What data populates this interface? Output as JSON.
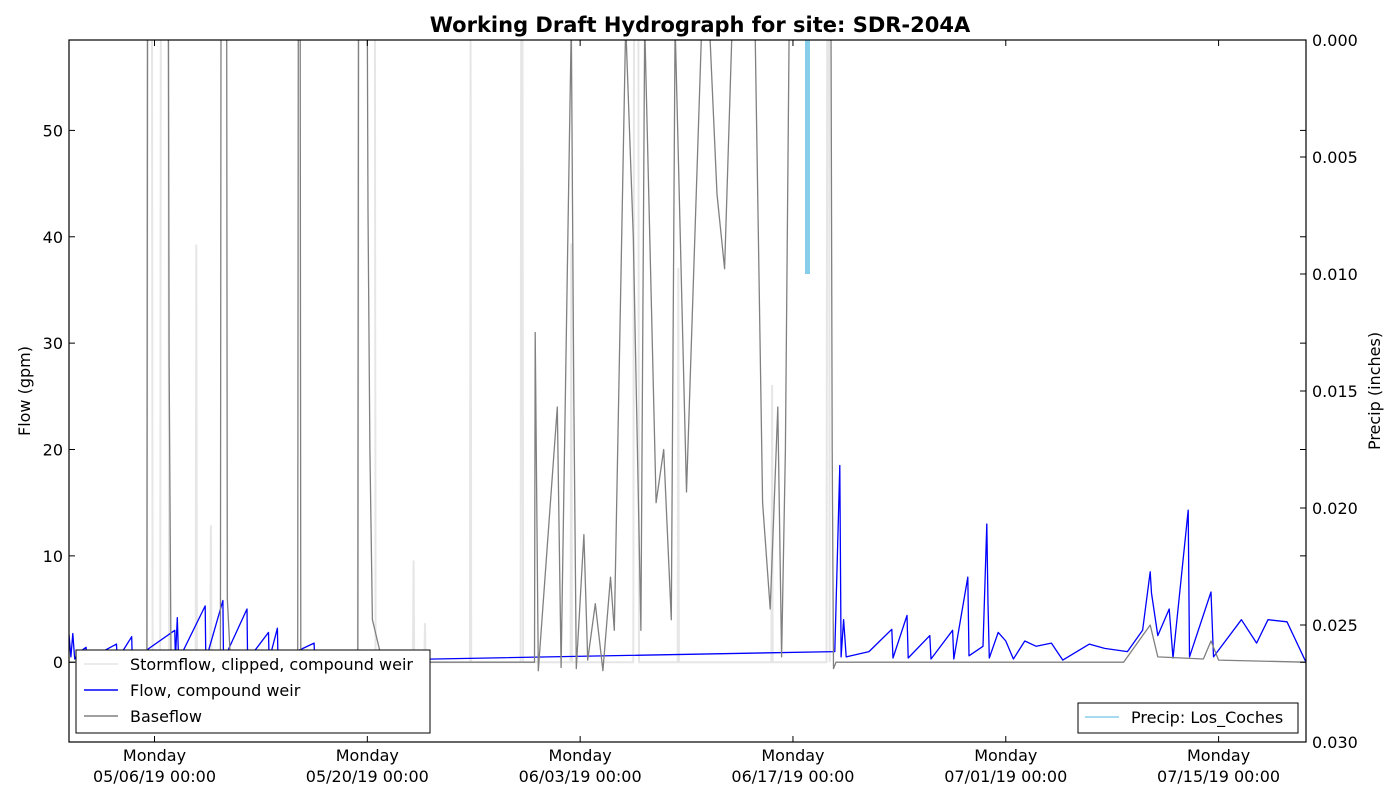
{
  "chart_data": {
    "type": "line",
    "title": "Working Draft Hydrograph for site: SDR-204A",
    "ylabel": "Flow (gpm)",
    "y2label": "Precip (inches)",
    "ylim": [
      -7.5,
      58.5
    ],
    "y2lim": [
      0.0,
      0.03
    ],
    "y2_inverted": true,
    "xlim": [
      "2019-04-30 09:00",
      "2019-07-20 18:00"
    ],
    "yticks": [
      "0",
      "10",
      "20",
      "30",
      "40",
      "50"
    ],
    "y2ticks": [
      "0.000",
      "0.005",
      "0.010",
      "0.015",
      "0.020",
      "0.025",
      "0.030"
    ],
    "xticks": [
      {
        "weekday": "Monday",
        "datetime": "05/06/19 00:00"
      },
      {
        "weekday": "Monday",
        "datetime": "05/20/19 00:00"
      },
      {
        "weekday": "Monday",
        "datetime": "06/03/19 00:00"
      },
      {
        "weekday": "Monday",
        "datetime": "06/17/19 00:00"
      },
      {
        "weekday": "Monday",
        "datetime": "07/01/19 00:00"
      },
      {
        "weekday": "Monday",
        "datetime": "07/15/19 00:00"
      }
    ],
    "legend_left": {
      "placement": "lower-left",
      "entries": [
        {
          "label": "Stormflow, clipped, compound weir",
          "color": "#e6e6e6"
        },
        {
          "label": "Flow, compound weir",
          "color": "#0000ff"
        },
        {
          "label": "Baseflow",
          "color": "#808080"
        }
      ]
    },
    "legend_right": {
      "placement": "lower-right",
      "entries": [
        {
          "label": "Precip: Los_Coches",
          "color": "#87ceeb"
        }
      ]
    },
    "series": [
      {
        "name": "Stormflow, clipped, compound weir",
        "color": "#e6e6e6",
        "points": [
          [
            "2019-05-05 12:00",
            0
          ],
          [
            "2019-05-05 13:00",
            60
          ],
          [
            "2019-05-05 20:00",
            60
          ],
          [
            "2019-05-05 21:00",
            0
          ],
          [
            "2019-05-06 09:00",
            0
          ],
          [
            "2019-05-06 10:00",
            60
          ],
          [
            "2019-05-06 22:00",
            60
          ],
          [
            "2019-05-06 23:00",
            0
          ],
          [
            "2019-05-08 17:00",
            0
          ],
          [
            "2019-05-08 18:00",
            39.2
          ],
          [
            "2019-05-08 19:00",
            0
          ],
          [
            "2019-05-09 16:00",
            0
          ],
          [
            "2019-05-09 17:00",
            12.8
          ],
          [
            "2019-05-09 18:00",
            0
          ],
          [
            "2019-05-19 09:00",
            0
          ],
          [
            "2019-05-19 10:00",
            60
          ],
          [
            "2019-05-20 12:00",
            60
          ],
          [
            "2019-05-20 13:00",
            0
          ],
          [
            "2019-05-23 00:00",
            0
          ],
          [
            "2019-05-23 01:00",
            9.5
          ],
          [
            "2019-05-23 02:00",
            0
          ],
          [
            "2019-05-23 18:00",
            0
          ],
          [
            "2019-05-23 19:00",
            3.6
          ],
          [
            "2019-05-23 20:00",
            0
          ],
          [
            "2019-05-26 18:00",
            0
          ],
          [
            "2019-05-26 19:00",
            60
          ],
          [
            "2019-05-26 20:00",
            0
          ],
          [
            "2019-05-30 02:00",
            0
          ],
          [
            "2019-05-30 03:00",
            60
          ],
          [
            "2019-05-30 05:00",
            60
          ],
          [
            "2019-05-30 06:00",
            0
          ],
          [
            "2019-06-02 09:00",
            0
          ],
          [
            "2019-06-02 10:00",
            39.3
          ],
          [
            "2019-06-02 11:00",
            0
          ],
          [
            "2019-06-06 12:00",
            0
          ],
          [
            "2019-06-06 13:00",
            60
          ],
          [
            "2019-06-06 20:00",
            60
          ],
          [
            "2019-06-06 21:00",
            0
          ],
          [
            "2019-06-09 10:00",
            0
          ],
          [
            "2019-06-09 11:00",
            37
          ],
          [
            "2019-06-09 12:00",
            0
          ],
          [
            "2019-06-15 14:00",
            0
          ],
          [
            "2019-06-15 15:00",
            26
          ],
          [
            "2019-06-15 16:00",
            0
          ],
          [
            "2019-06-19 05:00",
            0
          ],
          [
            "2019-06-19 06:00",
            60
          ],
          [
            "2019-06-19 09:00",
            60
          ],
          [
            "2019-06-19 10:00",
            0
          ]
        ]
      },
      {
        "name": "Flow, compound weir",
        "color": "#0000ff",
        "points": [
          [
            "2019-04-30 09:00",
            2.6
          ],
          [
            "2019-04-30 12:00",
            0.5
          ],
          [
            "2019-04-30 15:00",
            2.7
          ],
          [
            "2019-04-30 18:00",
            0.3
          ],
          [
            "2019-05-01 00:00",
            0.9
          ],
          [
            "2019-05-01 12:00",
            1.4
          ],
          [
            "2019-05-01 13:00",
            0.2
          ],
          [
            "2019-05-03 12:00",
            1.7
          ],
          [
            "2019-05-03 13:00",
            0.2
          ],
          [
            "2019-05-04 12:00",
            2.4
          ],
          [
            "2019-05-04 13:00",
            0.2
          ],
          [
            "2019-05-07 08:00",
            3.0
          ],
          [
            "2019-05-07 09:00",
            0.2
          ],
          [
            "2019-05-07 12:00",
            4.2
          ],
          [
            "2019-05-07 14:00",
            0.2
          ],
          [
            "2019-05-09 08:00",
            5.3
          ],
          [
            "2019-05-09 09:00",
            0.2
          ],
          [
            "2019-05-10 12:00",
            5.8
          ],
          [
            "2019-05-10 13:00",
            0.2
          ],
          [
            "2019-05-12 02:00",
            5.0
          ],
          [
            "2019-05-12 03:00",
            0.2
          ],
          [
            "2019-05-13 12:00",
            2.8
          ],
          [
            "2019-05-13 13:00",
            0.2
          ],
          [
            "2019-05-14 02:00",
            3.2
          ],
          [
            "2019-05-14 03:00",
            0.2
          ],
          [
            "2019-05-16 12:00",
            1.8
          ],
          [
            "2019-05-16 13:00",
            0.1
          ],
          [
            "2019-06-19 18:00",
            1.0
          ],
          [
            "2019-06-20 02:00",
            18.5
          ],
          [
            "2019-06-20 04:00",
            0.5
          ],
          [
            "2019-06-20 08:00",
            4.0
          ],
          [
            "2019-06-20 12:00",
            0.5
          ],
          [
            "2019-06-22 00:00",
            1.0
          ],
          [
            "2019-06-23 12:00",
            3.1
          ],
          [
            "2019-06-23 14:00",
            0.4
          ],
          [
            "2019-06-24 12:00",
            4.4
          ],
          [
            "2019-06-24 14:00",
            0.4
          ],
          [
            "2019-06-26 00:00",
            2.5
          ],
          [
            "2019-06-26 02:00",
            0.3
          ],
          [
            "2019-06-27 12:00",
            3.0
          ],
          [
            "2019-06-27 14:00",
            0.3
          ],
          [
            "2019-06-28 12:00",
            8.0
          ],
          [
            "2019-06-28 14:00",
            0.6
          ],
          [
            "2019-06-29 12:00",
            1.5
          ],
          [
            "2019-06-29 18:00",
            13.0
          ],
          [
            "2019-06-29 20:00",
            5.5
          ],
          [
            "2019-06-29 22:00",
            0.4
          ],
          [
            "2019-06-30 12:00",
            2.8
          ],
          [
            "2019-07-01 00:00",
            2.0
          ],
          [
            "2019-07-01 12:00",
            0.3
          ],
          [
            "2019-07-02 06:00",
            2.0
          ],
          [
            "2019-07-03 00:00",
            1.5
          ],
          [
            "2019-07-04 00:00",
            1.8
          ],
          [
            "2019-07-04 18:00",
            0.2
          ],
          [
            "2019-07-06 12:00",
            1.7
          ],
          [
            "2019-07-07 12:00",
            1.3
          ],
          [
            "2019-07-09 00:00",
            1.0
          ],
          [
            "2019-07-10 00:00",
            3.0
          ],
          [
            "2019-07-10 12:00",
            8.5
          ],
          [
            "2019-07-10 14:00",
            6.5
          ],
          [
            "2019-07-11 00:00",
            2.5
          ],
          [
            "2019-07-11 18:00",
            5.0
          ],
          [
            "2019-07-12 00:00",
            0.4
          ],
          [
            "2019-07-13 00:00",
            14.3
          ],
          [
            "2019-07-13 02:00",
            0.5
          ],
          [
            "2019-07-14 12:00",
            6.6
          ],
          [
            "2019-07-14 16:00",
            0.5
          ],
          [
            "2019-07-16 12:00",
            4.0
          ],
          [
            "2019-07-17 12:00",
            1.8
          ],
          [
            "2019-07-18 06:00",
            4.0
          ],
          [
            "2019-07-19 12:00",
            3.8
          ],
          [
            "2019-07-20 18:00",
            0.0
          ]
        ]
      },
      {
        "name": "Baseflow",
        "color": "#808080",
        "points": [
          [
            "2019-04-30 09:00",
            0.0
          ],
          [
            "2019-05-05 12:00",
            0.0
          ],
          [
            "2019-05-05 13:00",
            60
          ],
          [
            "2019-05-06 22:00",
            60
          ],
          [
            "2019-05-06 23:00",
            28.5
          ],
          [
            "2019-05-07 02:00",
            0.2
          ],
          [
            "2019-05-10 08:00",
            0.2
          ],
          [
            "2019-05-10 09:00",
            60
          ],
          [
            "2019-05-10 18:00",
            60
          ],
          [
            "2019-05-10 19:00",
            6.0
          ],
          [
            "2019-05-11 00:00",
            0.1
          ],
          [
            "2019-05-15 10:00",
            0.1
          ],
          [
            "2019-05-15 11:00",
            60
          ],
          [
            "2019-05-15 14:00",
            60
          ],
          [
            "2019-05-15 15:00",
            0.1
          ],
          [
            "2019-05-19 09:00",
            0.1
          ],
          [
            "2019-05-19 10:00",
            60
          ],
          [
            "2019-05-20 00:00",
            60
          ],
          [
            "2019-05-20 01:00",
            42.5
          ],
          [
            "2019-05-20 04:00",
            20.0
          ],
          [
            "2019-05-20 08:00",
            4.0
          ],
          [
            "2019-05-21 00:00",
            0.0
          ],
          [
            "2019-05-31 00:00",
            0.0
          ],
          [
            "2019-05-31 01:00",
            31.0
          ],
          [
            "2019-05-31 06:00",
            -0.8
          ],
          [
            "2019-06-01 12:00",
            24.0
          ],
          [
            "2019-06-01 18:00",
            -0.5
          ],
          [
            "2019-06-02 06:00",
            45.0
          ],
          [
            "2019-06-02 10:00",
            60
          ],
          [
            "2019-06-02 14:00",
            25.0
          ],
          [
            "2019-06-02 18:00",
            -0.6
          ],
          [
            "2019-06-03 06:00",
            12.0
          ],
          [
            "2019-06-03 12:00",
            0.2
          ],
          [
            "2019-06-04 00:00",
            5.5
          ],
          [
            "2019-06-04 12:00",
            -0.8
          ],
          [
            "2019-06-05 00:00",
            8.0
          ],
          [
            "2019-06-05 06:00",
            3.0
          ],
          [
            "2019-06-06 00:00",
            60
          ],
          [
            "2019-06-06 12:00",
            40.0
          ],
          [
            "2019-06-07 00:00",
            3.0
          ],
          [
            "2019-06-07 06:00",
            60
          ],
          [
            "2019-06-08 00:00",
            15.0
          ],
          [
            "2019-06-08 12:00",
            20.0
          ],
          [
            "2019-06-09 00:00",
            4.0
          ],
          [
            "2019-06-09 06:00",
            60
          ],
          [
            "2019-06-10 00:00",
            16.0
          ],
          [
            "2019-06-11 00:00",
            60
          ],
          [
            "2019-06-11 12:00",
            60
          ],
          [
            "2019-06-12 00:00",
            44.0
          ],
          [
            "2019-06-12 12:00",
            37.0
          ],
          [
            "2019-06-13 00:00",
            60
          ],
          [
            "2019-06-14 12:00",
            60
          ],
          [
            "2019-06-15 00:00",
            15.0
          ],
          [
            "2019-06-15 12:00",
            5.0
          ],
          [
            "2019-06-16 00:00",
            24.0
          ],
          [
            "2019-06-16 06:00",
            0.5
          ],
          [
            "2019-06-16 12:00",
            20.0
          ],
          [
            "2019-06-16 18:00",
            60
          ],
          [
            "2019-06-17 12:00",
            60
          ],
          [
            "2019-06-18 00:00",
            60
          ],
          [
            "2019-06-19 12:00",
            60
          ],
          [
            "2019-06-19 14:00",
            20.0
          ],
          [
            "2019-06-19 16:00",
            -0.6
          ],
          [
            "2019-06-19 20:00",
            0.0
          ],
          [
            "2019-07-08 18:00",
            0.0
          ],
          [
            "2019-07-10 12:00",
            3.5
          ],
          [
            "2019-07-11 00:00",
            0.5
          ],
          [
            "2019-07-14 00:00",
            0.3
          ],
          [
            "2019-07-14 12:00",
            2.0
          ],
          [
            "2019-07-15 00:00",
            0.2
          ],
          [
            "2019-07-20 18:00",
            0.0
          ]
        ]
      },
      {
        "name": "Precip: Los_Coches",
        "color": "#87ceeb",
        "axis": "right",
        "bars": [
          {
            "x": "2019-06-17 23:00",
            "value": 0.01
          }
        ]
      }
    ]
  }
}
